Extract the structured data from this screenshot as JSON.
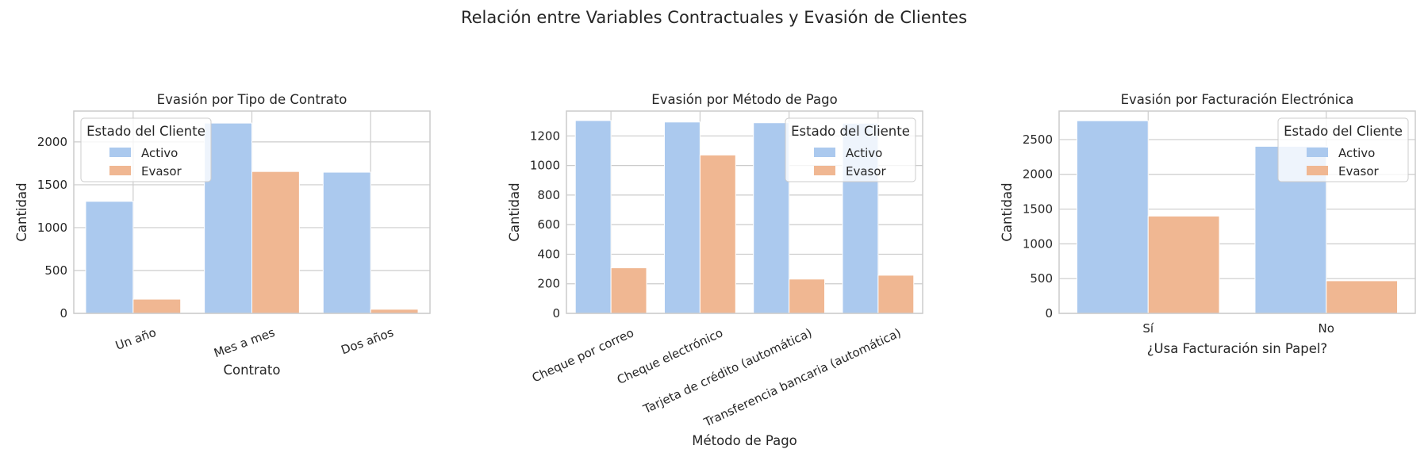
{
  "figure": {
    "suptitle": "Relación entre Variables Contractuales y Evasión de Clientes"
  },
  "colors": {
    "background": "#ffffff",
    "grid": "#cccccc",
    "spine": "#cccccc",
    "text": "#262626",
    "series": [
      "#abc9ee",
      "#f0b792"
    ]
  },
  "chart_data": [
    {
      "type": "bar",
      "title": "Evasión por Tipo de Contrato",
      "xlabel": "Contrato",
      "ylabel": "Cantidad",
      "categories": [
        "Un año",
        "Mes a mes",
        "Dos años"
      ],
      "series": [
        {
          "name": "Activo",
          "values": [
            1307,
            2220,
            1647
          ]
        },
        {
          "name": "Evasor",
          "values": [
            166,
            1655,
            48
          ]
        }
      ],
      "ylim": [
        0,
        2360
      ],
      "yticks": [
        0,
        500,
        1000,
        1500,
        2000
      ],
      "xtick_rotation": 20,
      "grid": true,
      "legend": {
        "title": "Estado del Cliente",
        "placement": "upper-left"
      }
    },
    {
      "type": "bar",
      "title": "Evasión por Método de Pago",
      "xlabel": "Método de Pago",
      "ylabel": "Cantidad",
      "categories": [
        "Cheque por correo",
        "Cheque electrónico",
        "Tarjeta de crédito (automática)",
        "Transferencia bancaria (automática)"
      ],
      "series": [
        {
          "name": "Activo",
          "values": [
            1304,
            1294,
            1289,
            1286
          ]
        },
        {
          "name": "Evasor",
          "values": [
            308,
            1071,
            232,
            258
          ]
        }
      ],
      "ylim": [
        0,
        1368
      ],
      "yticks": [
        0,
        200,
        400,
        600,
        800,
        1000,
        1200
      ],
      "xtick_rotation": 25,
      "grid": true,
      "legend": {
        "title": "Estado del Cliente",
        "placement": "upper-right"
      }
    },
    {
      "type": "bar",
      "title": "Evasión por Facturación Electrónica",
      "xlabel": "¿Usa Facturación sin Papel?",
      "ylabel": "Cantidad",
      "categories": [
        "Sí",
        "No"
      ],
      "series": [
        {
          "name": "Activo",
          "values": [
            2771,
            2403
          ]
        },
        {
          "name": "Evasor",
          "values": [
            1400,
            469
          ]
        }
      ],
      "ylim": [
        0,
        2910
      ],
      "yticks": [
        0,
        500,
        1000,
        1500,
        2000,
        2500
      ],
      "xtick_rotation": 0,
      "grid": true,
      "legend": {
        "title": "Estado del Cliente",
        "placement": "upper-right"
      }
    }
  ]
}
